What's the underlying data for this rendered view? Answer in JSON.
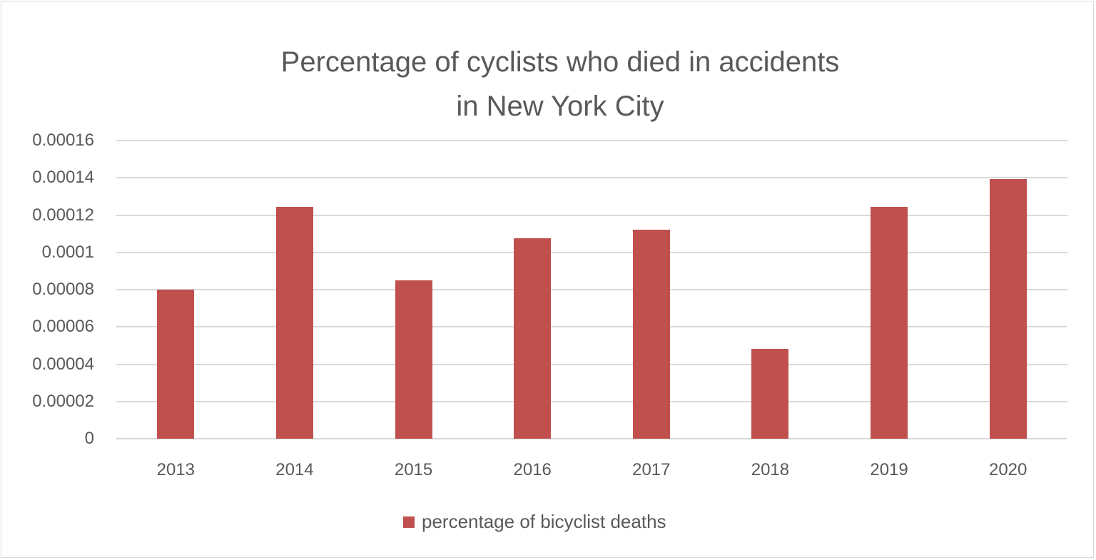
{
  "chart_data": {
    "type": "bar",
    "title": "Percentage of cyclists who died in accidents in New York City",
    "title_lines": [
      "Percentage of cyclists who died in accidents",
      "in New York City"
    ],
    "categories": [
      "2013",
      "2014",
      "2015",
      "2016",
      "2017",
      "2018",
      "2019",
      "2020"
    ],
    "series": [
      {
        "name": "percentage of bicyclist deaths",
        "color": "#c0504d",
        "values": [
          8e-05,
          0.0001245,
          8.49e-05,
          0.0001075,
          0.000112,
          4.82e-05,
          0.0001243,
          0.0001392
        ]
      }
    ],
    "xlabel": "",
    "ylabel": "",
    "ylim": [
      0,
      0.00016
    ],
    "yticks": [
      "0",
      "0.00002",
      "0.00004",
      "0.00006",
      "0.00008",
      "0.0001",
      "0.00012",
      "0.00014",
      "0.00016"
    ],
    "grid": true,
    "legend_position": "bottom"
  }
}
